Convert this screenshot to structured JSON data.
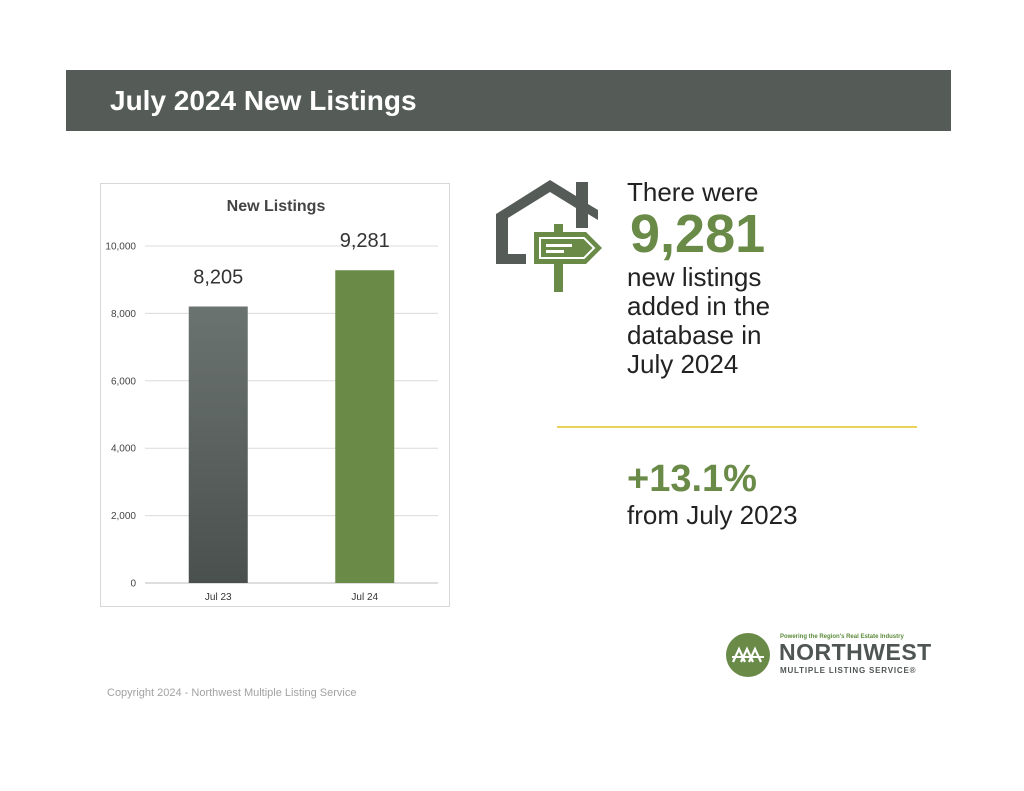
{
  "header": {
    "title": "July 2024 New Listings"
  },
  "chart_data": {
    "type": "bar",
    "title": "New Listings",
    "categories": [
      "Jul 23",
      "Jul 24"
    ],
    "values": [
      8205,
      9281
    ],
    "value_labels": [
      "8,205",
      "9,281"
    ],
    "colors": [
      "#5e6563",
      "#6a8a48"
    ],
    "ylim": [
      0,
      10000
    ],
    "yticks": [
      0,
      2000,
      4000,
      6000,
      8000,
      10000
    ],
    "ytick_labels": [
      "0",
      "2,000",
      "4,000",
      "6,000",
      "8,000",
      "10,000"
    ],
    "grid": true
  },
  "stat": {
    "line1": "There were",
    "value": "9,281",
    "lines": [
      "new listings",
      "added in the",
      "database in",
      "July 2024"
    ]
  },
  "change": {
    "value": "+13.1%",
    "label": "from July 2023"
  },
  "icons": {
    "house": "house-signpost-icon"
  },
  "footer": {
    "copyright": "Copyright 2024 - Northwest Multiple Listing Service"
  },
  "logo": {
    "tagline": "Powering the Region's Real Estate Industry",
    "name": "NORTHWEST",
    "sub": "MULTIPLE LISTING SERVICE®"
  }
}
